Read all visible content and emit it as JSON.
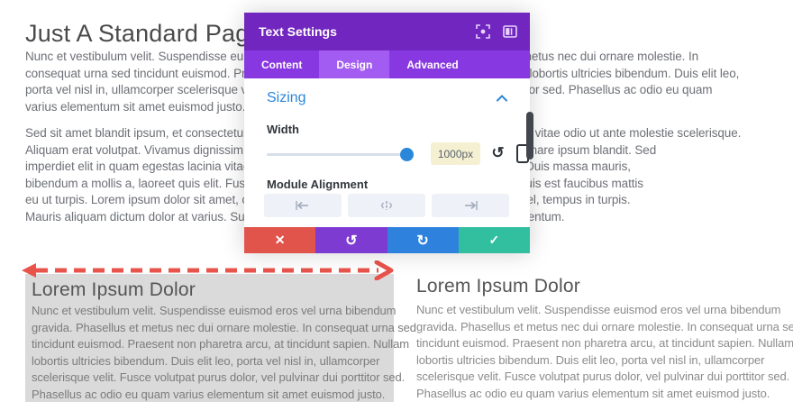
{
  "page": {
    "title": "Just A Standard Page",
    "paragraph1_lines": [
      "Nunc et vestibulum velit. Suspendisse euismod eros vel urna bibendum gravida. Phasellus et metus nec dui ornare molestie. In",
      "consequat urna sed tincidunt euismod. Praesent non pharetra arcu, at tincidunt sapien. Nullam lobortis ultricies bibendum. Duis elit leo,",
      "porta vel nisl in, ullamcorper scelerisque velit. Fusce volutpat purus dolor, vel pulvinar dui porttitor sed. Phasellus ac odio eu quam",
      "varius elementum sit amet euismod justo."
    ],
    "paragraph2_lines": [
      "Sed sit amet blandit ipsum, et consectetur libero. Integer convallis at metus quis molestie. Morbi vitae odio ut ante molestie scelerisque.",
      "Aliquam erat volutpat. Vivamus dignissim posuere nibh, nec imperdiet velit pellentesque, non ornare ipsum blandit. Sed",
      "imperdiet elit in quam egestas lacinia vitae mattis purus porta. Vestibulum a tellus hendrerit at. Duis massa mauris,",
      "bibendum a mollis a, laoreet quis elit. Fusce dapibus justo sit amet laoreet vel. Nam ut ipsum quis est faucibus mattis",
      "eu ut turpis. Lorem ipsum dolor sit amet, consectetur adipiscing elit. Duis venenatis in fringilla vel, tempus in turpis.",
      "Mauris aliquam dictum dolor at varius. Suspendisse potenti. Quisque finibus nulla sit amet fermentum."
    ]
  },
  "modal": {
    "title": "Text Settings",
    "tabs": [
      {
        "label": "Content",
        "active": false
      },
      {
        "label": "Design",
        "active": true
      },
      {
        "label": "Advanced",
        "active": false
      }
    ],
    "sizing": {
      "section_title": "Sizing",
      "width_label": "Width",
      "width_value": "1000px",
      "module_alignment_label": "Module Alignment"
    },
    "actions": {
      "discard_icon": "✕",
      "undo_icon": "↺",
      "redo_icon": "↻",
      "save_icon": "✓"
    },
    "header_icons": [
      "expand-icon",
      "split-view-icon"
    ],
    "colors": {
      "header_purple": "#7126bf",
      "tabbar_purple": "#8838e0",
      "active_tab_purple": "#a35cf2",
      "accent_blue": "#2b87da",
      "value_box_yellow": "#f5f0d2",
      "discard_red": "#e0544c",
      "undo_purple": "#7e3bd2",
      "redo_blue": "#2e82dd",
      "save_teal": "#32bf9f"
    }
  },
  "annotation": {
    "arrow_color": "#e8544b",
    "style": "dashed-double-headed-horizontal"
  },
  "columns": {
    "left": {
      "heading": "Lorem Ipsum Dolor",
      "background": "#dadada",
      "lines": [
        "Nunc et vestibulum velit. Suspendisse euismod eros vel urna bibendum",
        "gravida. Phasellus et metus nec dui ornare molestie. In consequat urna sed",
        "tincidunt euismod. Praesent non pharetra arcu, at tincidunt sapien. Nullam",
        "lobortis ultricies bibendum. Duis elit leo, porta vel nisl in, ullamcorper",
        "scelerisque velit. Fusce volutpat purus dolor, vel pulvinar dui porttitor sed.",
        "Phasellus ac odio eu quam varius elementum sit amet euismod justo."
      ]
    },
    "right": {
      "heading": "Lorem Ipsum Dolor",
      "background": "#ffffff",
      "lines": [
        "Nunc et vestibulum velit. Suspendisse euismod eros vel urna bibendum",
        "gravida. Phasellus et metus nec dui ornare molestie. In consequat urna sed",
        "tincidunt euismod. Praesent non pharetra arcu, at tincidunt sapien. Nullam",
        "lobortis ultricies bibendum. Duis elit leo, porta vel nisl in, ullamcorper",
        "scelerisque velit. Fusce volutpat purus dolor, vel pulvinar dui porttitor sed.",
        "Phasellus ac odio eu quam varius elementum sit amet euismod justo."
      ]
    }
  }
}
